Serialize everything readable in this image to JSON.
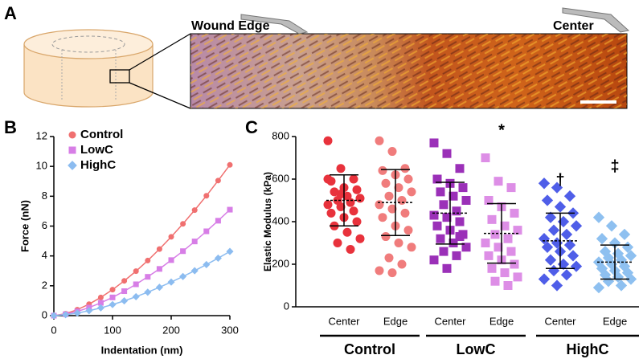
{
  "figure": {
    "panel_labels": [
      "A",
      "B",
      "C"
    ],
    "image_labels": [
      "Wound Edge",
      "Center"
    ]
  },
  "chart_data": [
    {
      "type": "line",
      "x_label": "Indentation (nm)",
      "y_label": "Force (nN)",
      "x": [
        0,
        20,
        40,
        60,
        80,
        100,
        120,
        140,
        160,
        180,
        200,
        220,
        240,
        260,
        280,
        300
      ],
      "series": [
        {
          "name": "Control",
          "color": "#f07070",
          "marker": "circle",
          "values": [
            0,
            0.13,
            0.4,
            0.77,
            1.22,
            1.74,
            2.33,
            2.98,
            3.69,
            4.46,
            5.28,
            6.15,
            7.07,
            8.03,
            9.05,
            10.1
          ]
        },
        {
          "name": "LowC",
          "color": "#d77ee6",
          "marker": "square",
          "values": [
            0,
            0.09,
            0.28,
            0.54,
            0.86,
            1.22,
            1.64,
            2.1,
            2.6,
            3.13,
            3.72,
            4.32,
            4.97,
            5.65,
            6.36,
            7.1
          ]
        },
        {
          "name": "HighC",
          "color": "#8cbcf0",
          "marker": "diamond",
          "values": [
            0,
            0.06,
            0.17,
            0.33,
            0.52,
            0.74,
            0.99,
            1.27,
            1.57,
            1.9,
            2.25,
            2.62,
            3.01,
            3.42,
            3.85,
            4.3
          ]
        }
      ],
      "xlim": [
        0,
        300
      ],
      "xticks": [
        0,
        100,
        200,
        300
      ],
      "ylim": [
        0,
        12
      ],
      "yticks": [
        0,
        2,
        4,
        6,
        8,
        10,
        12
      ],
      "legend": "upper left"
    },
    {
      "type": "dot",
      "y_label": "Elastic Modulus (kPa)",
      "categories": [
        "Center",
        "Edge",
        "Center",
        "Edge",
        "Center",
        "Edge"
      ],
      "group_labels": [
        "Control",
        "LowC",
        "HighC"
      ],
      "colors": [
        "#e8323c",
        "#f07c7c",
        "#9b30b8",
        "#dd8ee6",
        "#4f5ee8",
        "#8ec0f0"
      ],
      "markers": [
        "circle",
        "circle",
        "square",
        "square",
        "diamond",
        "diamond"
      ],
      "points": [
        [
          780,
          650,
          600,
          590,
          560,
          550,
          540,
          520,
          510,
          500,
          490,
          480,
          470,
          450,
          440,
          420,
          400,
          380,
          350,
          320,
          300,
          270,
          600,
          530
        ],
        [
          780,
          730,
          650,
          640,
          620,
          600,
          580,
          560,
          540,
          520,
          500,
          480,
          460,
          440,
          420,
          380,
          360,
          330,
          300,
          280,
          230,
          200,
          170,
          160
        ],
        [
          770,
          720,
          650,
          600,
          580,
          560,
          540,
          520,
          500,
          480,
          450,
          430,
          420,
          400,
          380,
          360,
          340,
          320,
          300,
          280,
          260,
          240,
          220,
          180,
          330
        ],
        [
          700,
          590,
          560,
          500,
          470,
          440,
          410,
          380,
          360,
          340,
          320,
          300,
          280,
          260,
          240,
          220,
          200,
          180,
          160,
          140,
          120,
          100
        ],
        [
          580,
          560,
          520,
          500,
          470,
          440,
          420,
          400,
          380,
          360,
          340,
          320,
          300,
          290,
          280,
          260,
          240,
          220,
          200,
          190,
          170,
          150,
          130,
          100
        ],
        [
          420,
          380,
          340,
          320,
          300,
          280,
          260,
          250,
          240,
          230,
          220,
          210,
          200,
          190,
          180,
          170,
          160,
          150,
          140,
          130,
          120,
          100,
          90
        ]
      ],
      "means": [
        500,
        490,
        440,
        345,
        310,
        210
      ],
      "sds": [
        120,
        155,
        145,
        140,
        130,
        80
      ],
      "annotations": [
        null,
        null,
        null,
        "*",
        "†",
        "‡"
      ],
      "ylim": [
        0,
        800
      ],
      "yticks": [
        0,
        200,
        400,
        600,
        800
      ]
    }
  ]
}
